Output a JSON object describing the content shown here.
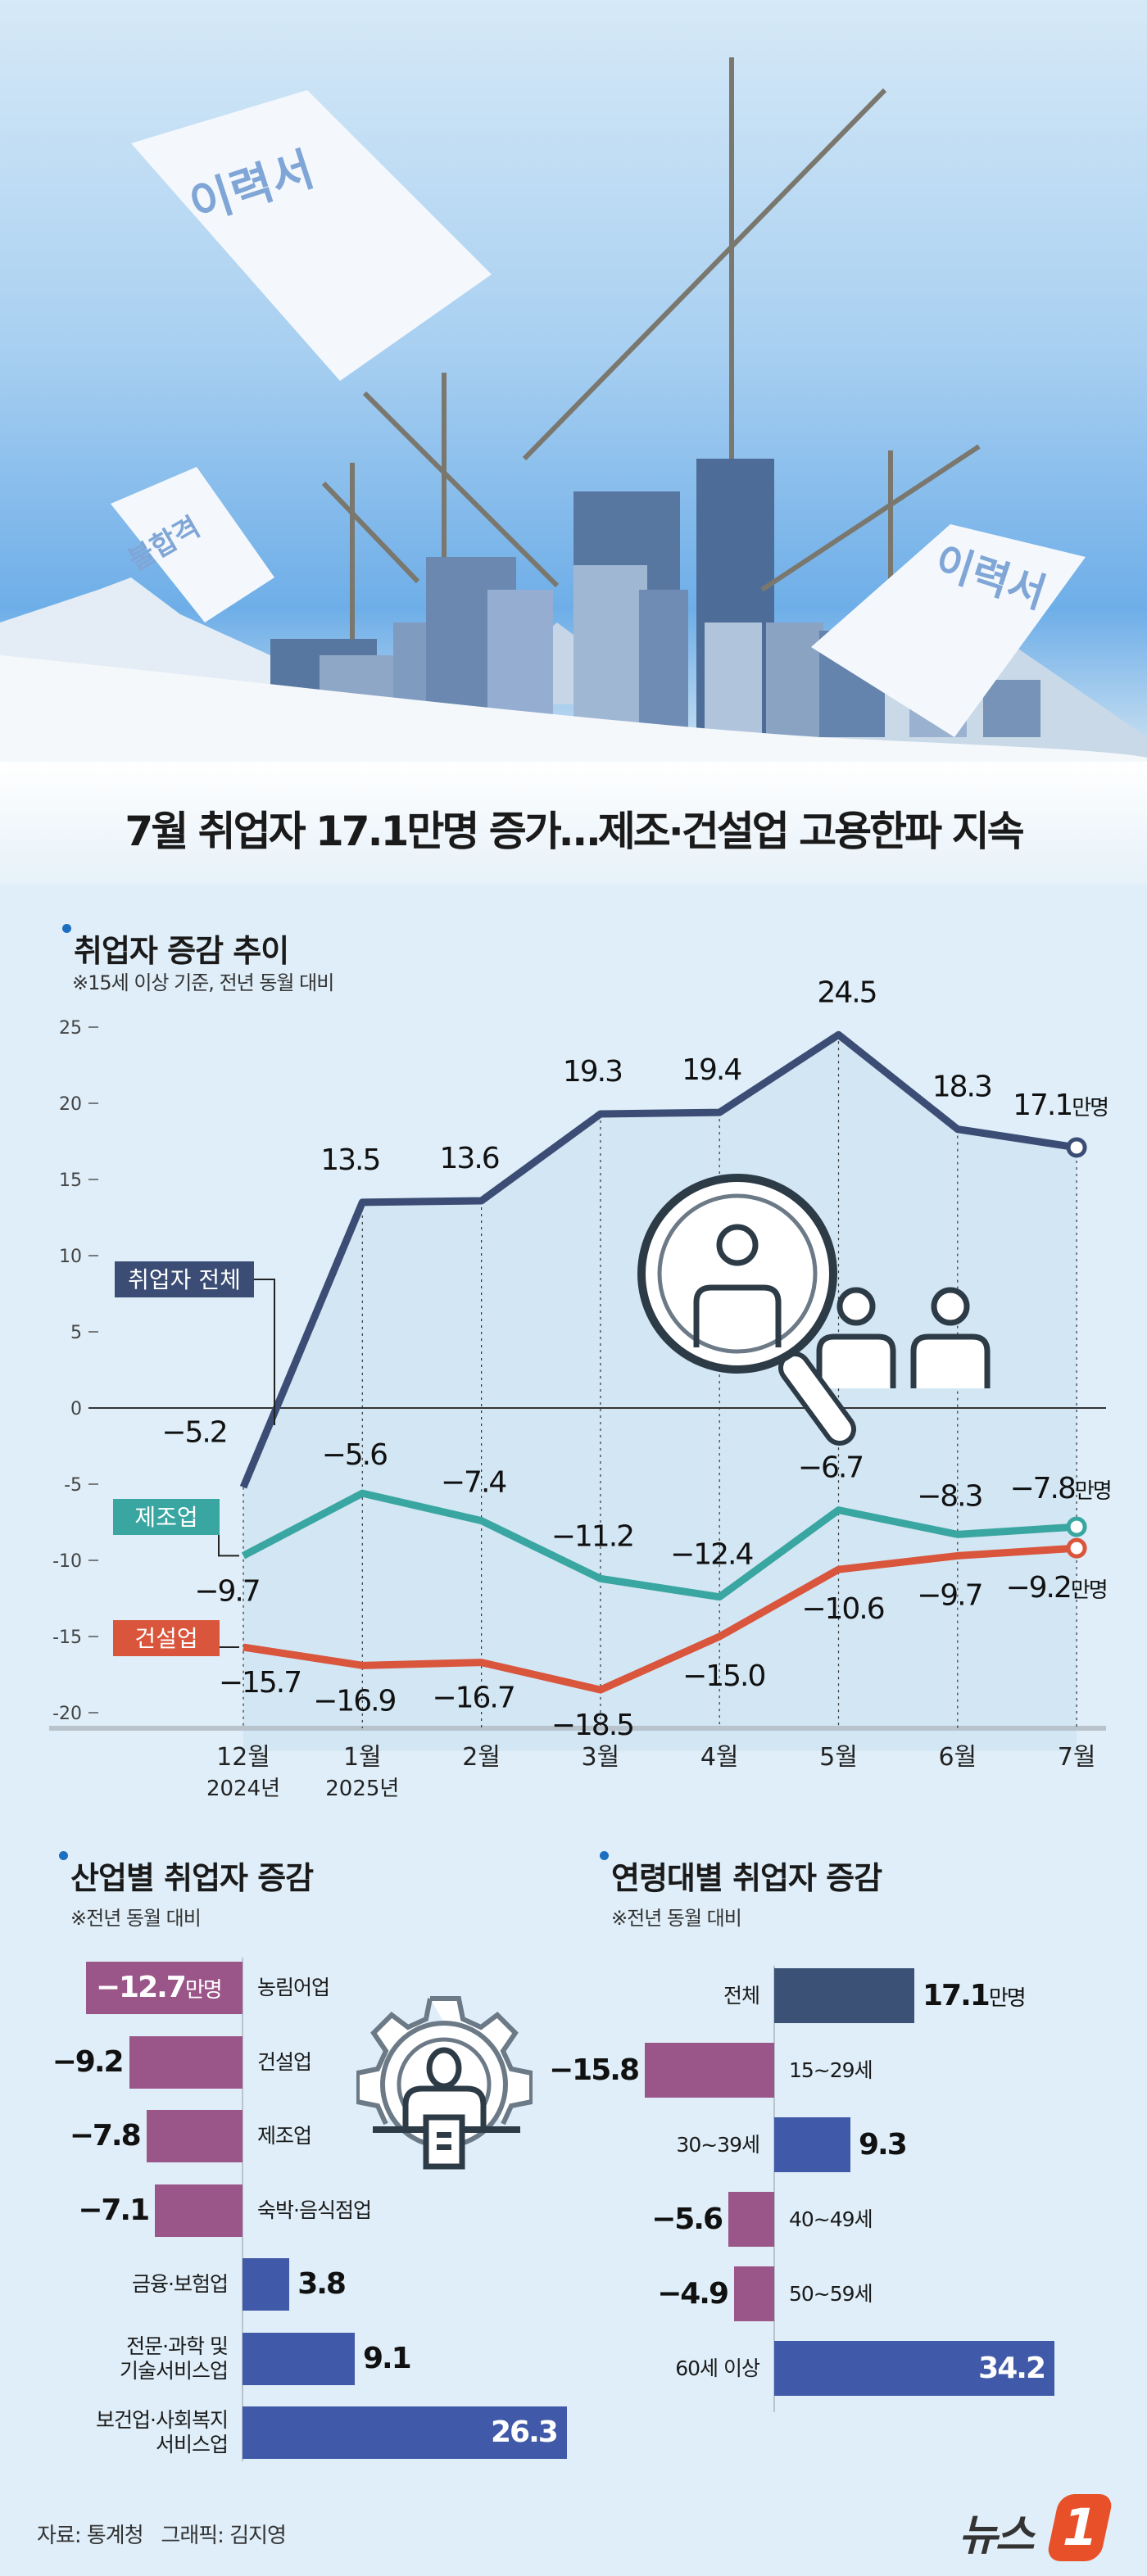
{
  "hero": {
    "paper1": "이력서",
    "paper2": "이력서",
    "paper3": "불합격"
  },
  "title": "7월 취업자 17.1만명 증가…제조·건설업 고용한파 지속",
  "line_section": {
    "title": "취업자 증감 추이",
    "note": "※15세 이상 기준, 전년 동월 대비"
  },
  "bar_left": {
    "title": "산업별 취업자 증감",
    "note": "※전년 동월 대비"
  },
  "bar_right": {
    "title": "연령대별 취업자 증감",
    "note": "※전년 동월 대비"
  },
  "footer": {
    "source": "자료: 통계청",
    "graphic": "그래픽: 김지영",
    "logo": "뉴스1"
  },
  "colors": {
    "total": "#3b4d74",
    "manufacturing": "#3aa6a1",
    "construction": "#d9553c",
    "negative_bar": "#9b5689",
    "positive_bar": "#4059a8",
    "total_bar": "#3b5276",
    "background": "#dfeef8"
  },
  "chart_data": [
    {
      "type": "line",
      "title": "취업자 증감 추이",
      "unit": "만명",
      "categories": [
        "12월",
        "1월",
        "2월",
        "3월",
        "4월",
        "5월",
        "6월",
        "7월"
      ],
      "year_labels": [
        "2024년",
        "2025년"
      ],
      "yticks": [
        25,
        20,
        15,
        10,
        5,
        0,
        -5,
        -10,
        -15,
        -20
      ],
      "ylim": [
        -22,
        27
      ],
      "series": [
        {
          "name": "취업자 전체",
          "values": [
            -5.2,
            13.5,
            13.6,
            19.3,
            19.4,
            24.5,
            18.3,
            17.1
          ],
          "color": "#3b4d74"
        },
        {
          "name": "제조업",
          "values": [
            -9.7,
            -5.6,
            -7.4,
            -11.2,
            -12.4,
            -6.7,
            -8.3,
            -7.8
          ],
          "color": "#3aa6a1"
        },
        {
          "name": "건설업",
          "values": [
            -15.7,
            -16.9,
            -16.7,
            -18.5,
            -15.0,
            -10.6,
            -9.7,
            -9.2
          ],
          "color": "#d9553c"
        }
      ],
      "value_labels": {
        "취업자 전체": [
          "-5.2",
          "13.5",
          "13.6",
          "19.3",
          "19.4",
          "24.5",
          "18.3",
          "17.1"
        ],
        "제조업": [
          "-9.7",
          "-5.6",
          "-7.4",
          "-11.2",
          "-12.4",
          "-6.7",
          "-8.3",
          "-7.8"
        ],
        "건설업": [
          "-15.7",
          "-16.9",
          "-16.7",
          "-18.5",
          "-15.0",
          "-10.6",
          "-9.7",
          "-9.2"
        ]
      }
    },
    {
      "type": "bar",
      "orientation": "horizontal",
      "title": "산업별 취업자 증감",
      "unit": "만명",
      "categories": [
        "농림어업",
        "건설업",
        "제조업",
        "숙박·음식점업",
        "금융·보험업",
        "전문·과학 및 기술서비스업",
        "보건업·사회복지 서비스업"
      ],
      "category_lines": [
        [
          "농림어업"
        ],
        [
          "건설업"
        ],
        [
          "제조업"
        ],
        [
          "숙박·음식점업"
        ],
        [
          "금융·보험업"
        ],
        [
          "전문·과학 및",
          "기술서비스업"
        ],
        [
          "보건업·사회복지",
          "서비스업"
        ]
      ],
      "values": [
        -12.7,
        -9.2,
        -7.8,
        -7.1,
        3.8,
        9.1,
        26.3
      ],
      "labels": [
        "-12.7",
        "-9.2",
        "-7.8",
        "-7.1",
        "3.8",
        "9.1",
        "26.3"
      ]
    },
    {
      "type": "bar",
      "orientation": "horizontal",
      "title": "연령대별 취업자 증감",
      "unit": "만명",
      "categories": [
        "전체",
        "15~29세",
        "30~39세",
        "40~49세",
        "50~59세",
        "60세 이상"
      ],
      "values": [
        17.1,
        -15.8,
        9.3,
        -5.6,
        -4.9,
        34.2
      ],
      "labels": [
        "17.1",
        "-15.8",
        "9.3",
        "-5.6",
        "-4.9",
        "34.2"
      ]
    }
  ]
}
